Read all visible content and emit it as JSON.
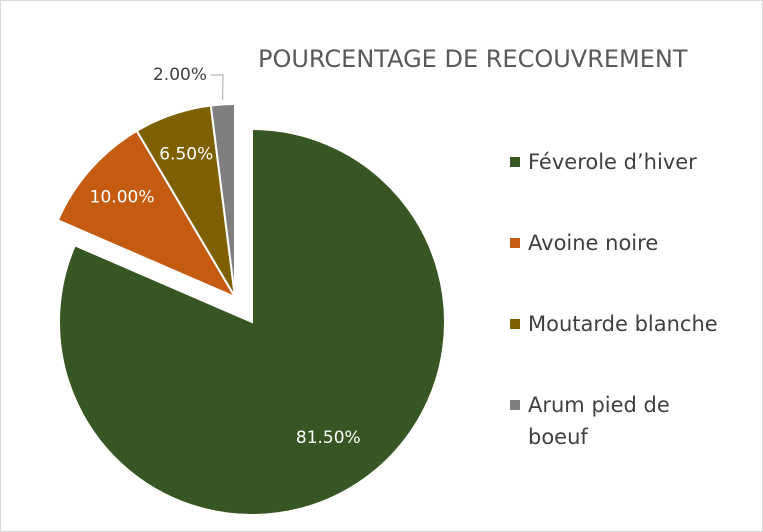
{
  "chart_data": {
    "type": "pie",
    "title": "POURCENTAGE DE RECOUVREMENT",
    "categories": [
      "Féverole d’hiver",
      "Avoine noire",
      "Moutarde blanche",
      "Arum pied de boeuf"
    ],
    "values": [
      81.5,
      10,
      6.5,
      2
    ],
    "value_labels": [
      "81.50%",
      "10.00%",
      "6.50%",
      "2.00%"
    ],
    "colors": [
      "#375623",
      "#c55a11",
      "#7f6000",
      "#7f7f7f"
    ],
    "legend": "right"
  }
}
